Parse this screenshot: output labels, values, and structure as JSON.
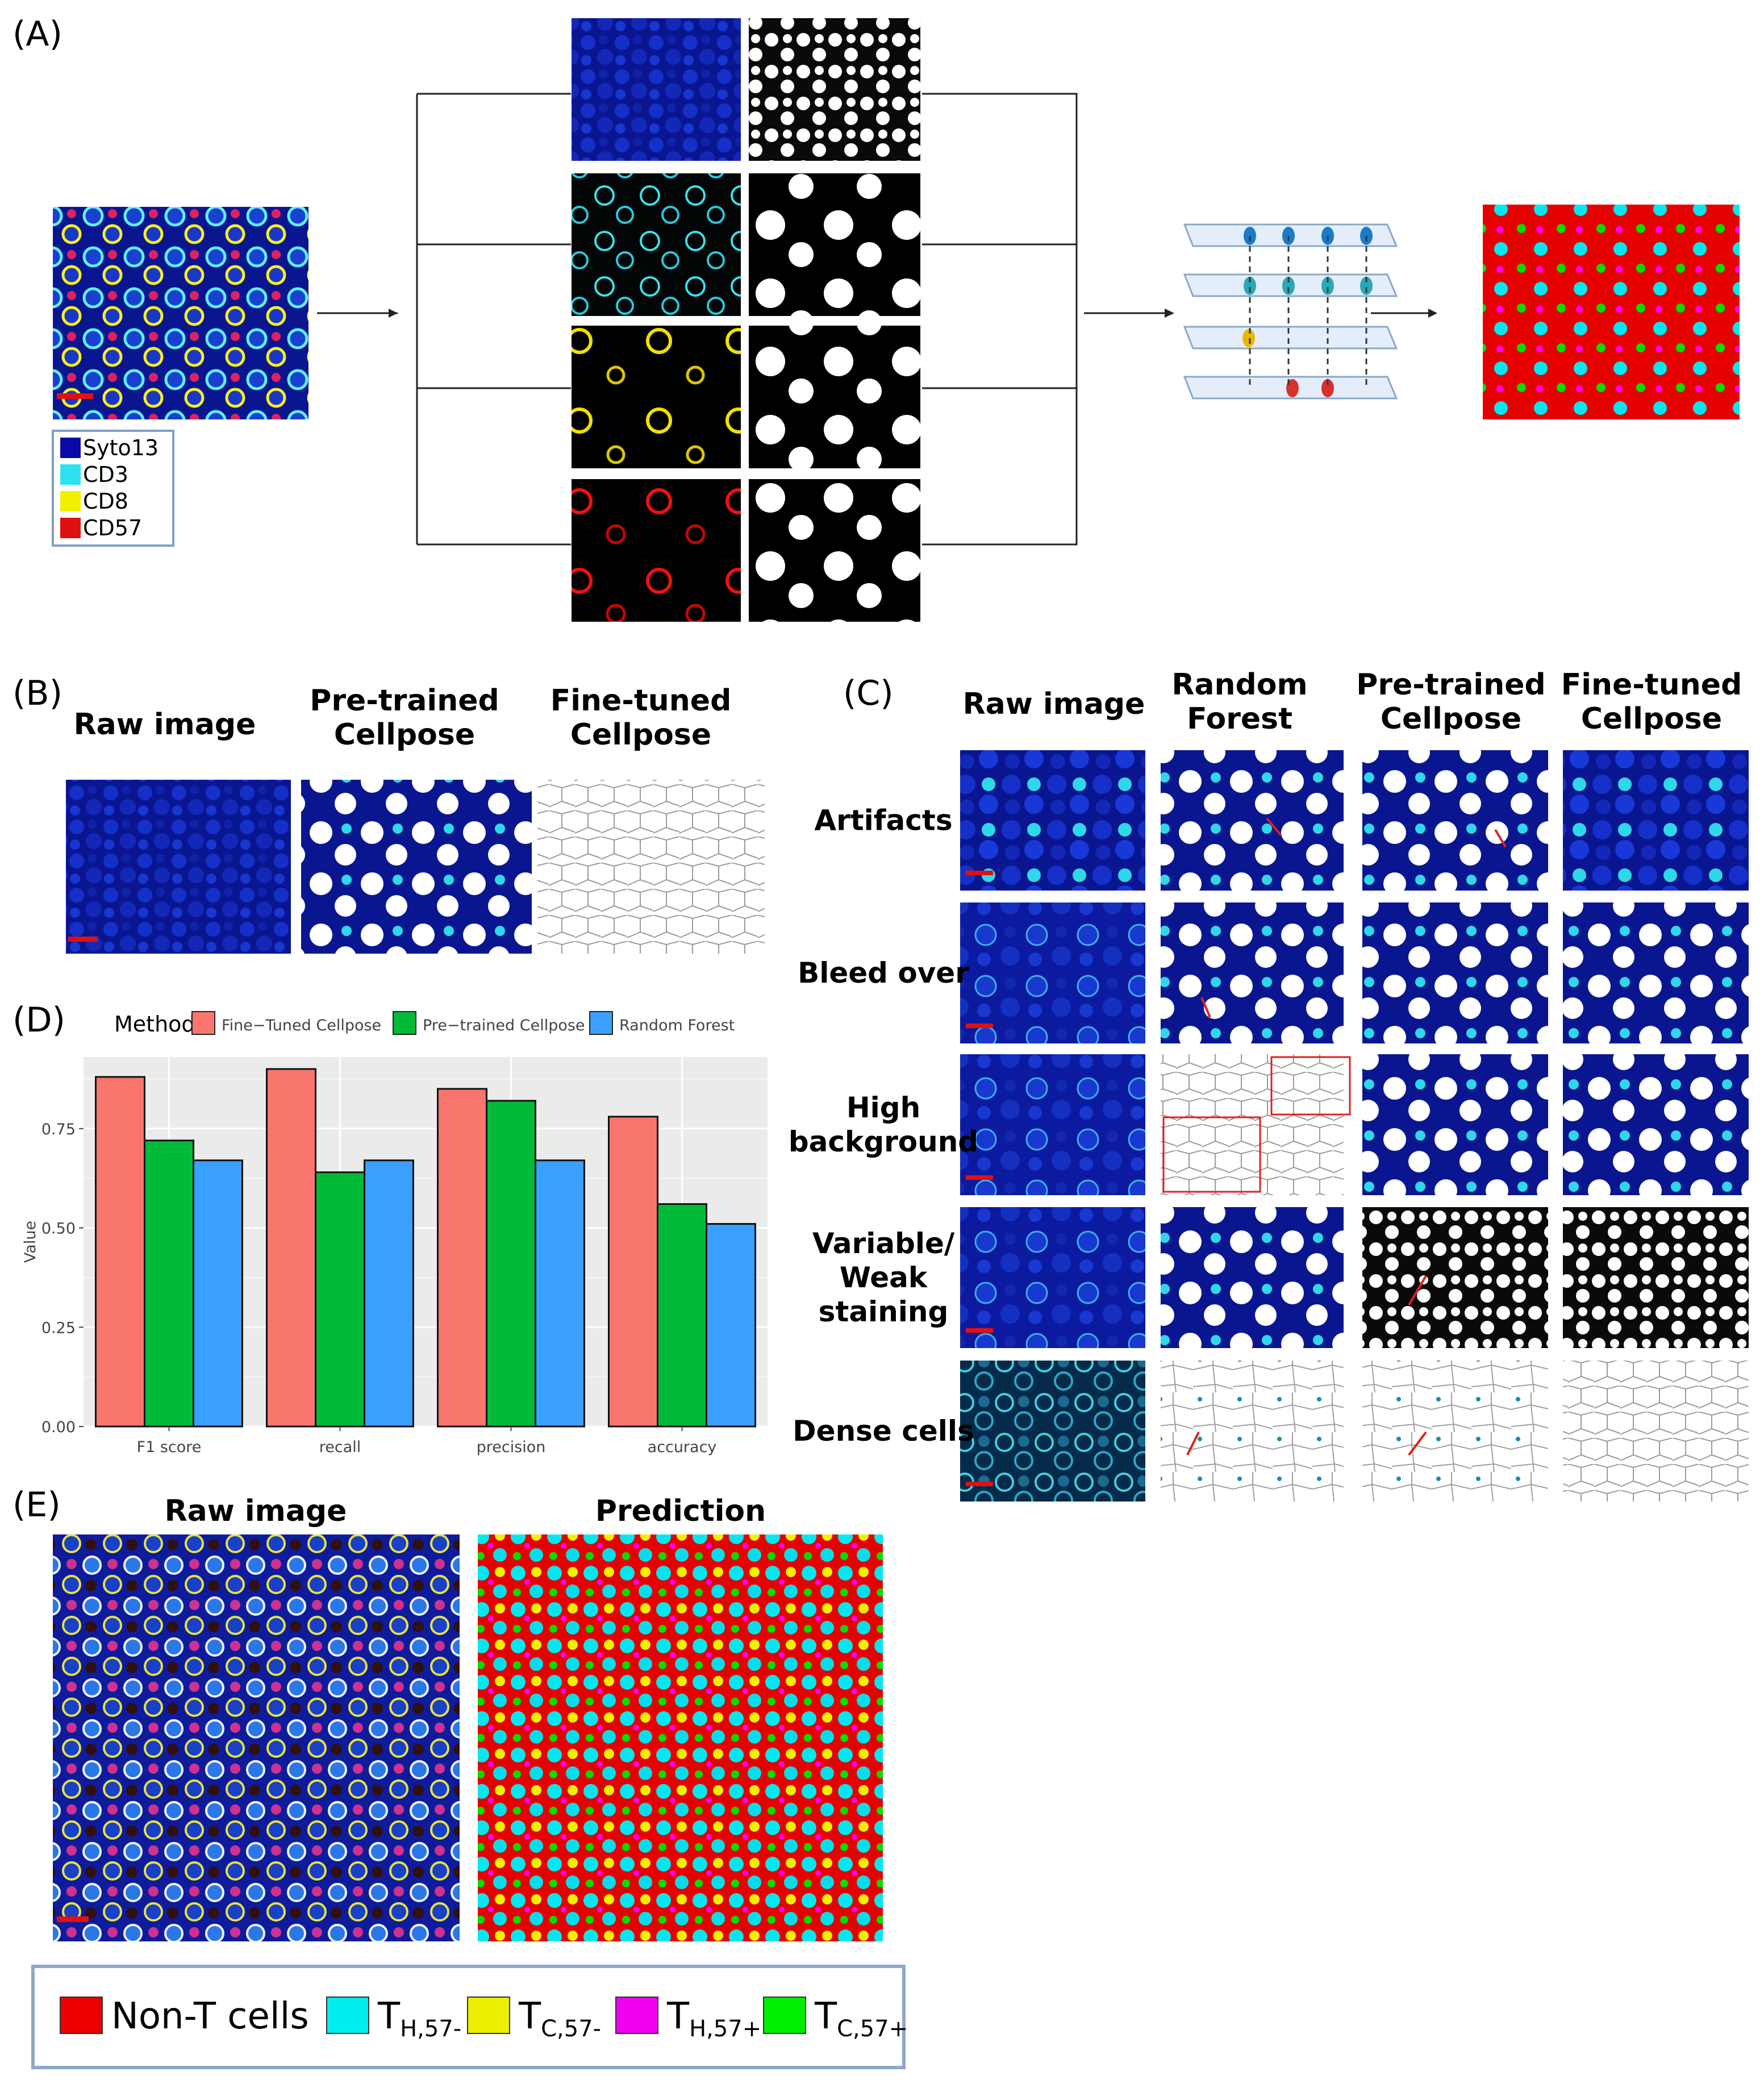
{
  "panels": {
    "A": {
      "letter": "(A)",
      "marker_legend": [
        {
          "label": "Syto13",
          "color": "#0a0aa8"
        },
        {
          "label": "CD3",
          "color": "#2fe0f0"
        },
        {
          "label": "CD8",
          "color": "#f0f000"
        },
        {
          "label": "CD57",
          "color": "#e01010"
        }
      ]
    },
    "B": {
      "letter": "(B)",
      "headers": [
        {
          "line1": "Raw image",
          "line2": ""
        },
        {
          "line1": "Pre-trained",
          "line2": "Cellpose"
        },
        {
          "line1": "Fine-tuned",
          "line2": "Cellpose"
        }
      ]
    },
    "C": {
      "letter": "(C)",
      "headers": [
        {
          "line1": "Raw image",
          "line2": ""
        },
        {
          "line1": "Random",
          "line2": "Forest"
        },
        {
          "line1": "Pre-trained",
          "line2": "Cellpose"
        },
        {
          "line1": "Fine-tuned",
          "line2": "Cellpose"
        }
      ],
      "rows": [
        {
          "lines": [
            "Artifacts"
          ]
        },
        {
          "lines": [
            "Bleed over"
          ]
        },
        {
          "lines": [
            "High",
            "background"
          ]
        },
        {
          "lines": [
            "Variable/",
            "Weak",
            "staining"
          ]
        },
        {
          "lines": [
            "Dense cells"
          ]
        }
      ]
    },
    "D": {
      "letter": "(D)",
      "legend_title": "Method",
      "ylabel": "Value",
      "chart_data": {
        "type": "bar",
        "categories": [
          "F1 score",
          "recall",
          "precision",
          "accuracy"
        ],
        "series": [
          {
            "name": "Fine−Tuned Cellpose",
            "color": "#f8766d",
            "values": [
              0.88,
              0.9,
              0.85,
              0.78
            ]
          },
          {
            "name": "Pre−trained Cellpose",
            "color": "#00ba38",
            "values": [
              0.72,
              0.64,
              0.82,
              0.56
            ]
          },
          {
            "name": "Random Forest",
            "color": "#3aa0ff",
            "values": [
              0.67,
              0.67,
              0.67,
              0.51
            ]
          }
        ],
        "yticks": [
          "0.00",
          "0.25",
          "0.50",
          "0.75"
        ],
        "ytick_values": [
          0,
          0.25,
          0.5,
          0.75
        ],
        "ylim": [
          0,
          0.93
        ],
        "legend_position": "top",
        "grid": true
      }
    },
    "E": {
      "letter": "(E)",
      "headers": [
        "Raw image",
        "Prediction"
      ],
      "class_legend": [
        {
          "label": "Non-T cells",
          "sub": "",
          "color": "#ee0000"
        },
        {
          "label": "T",
          "sub": "H,57-",
          "color": "#00eeee"
        },
        {
          "label": "T",
          "sub": "C,57-",
          "color": "#eeee00"
        },
        {
          "label": "T",
          "sub": "H,57+",
          "color": "#ee00ee"
        },
        {
          "label": "T",
          "sub": "C,57+",
          "color": "#00ee00"
        }
      ]
    }
  }
}
